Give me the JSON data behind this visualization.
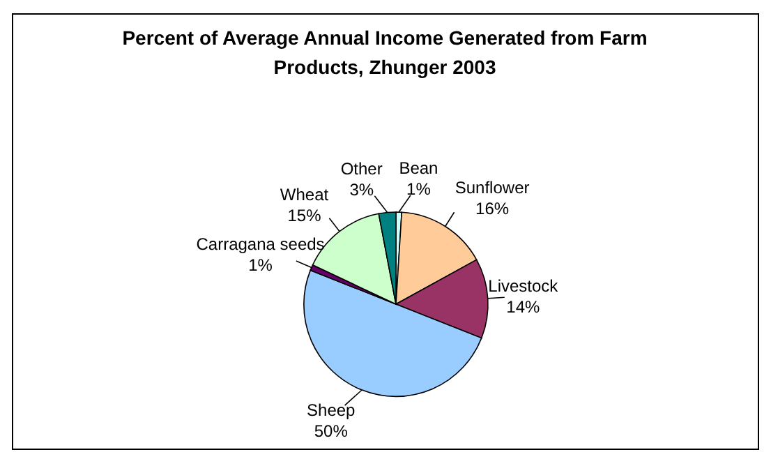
{
  "chart_data": {
    "type": "pie",
    "title": "Percent of Average Annual Income Generated from Farm Products, Zhunger 2003",
    "categories": [
      "Bean",
      "Sunflower",
      "Livestock",
      "Sheep",
      "Carragana seeds",
      "Wheat",
      "Other"
    ],
    "values": [
      1,
      16,
      14,
      50,
      1,
      15,
      3
    ],
    "value_labels": [
      "1%",
      "16%",
      "14%",
      "50%",
      "1%",
      "15%",
      "3%"
    ],
    "colors": [
      "#ccffff",
      "#ffcc99",
      "#993366",
      "#99ccff",
      "#660066",
      "#ccffcc",
      "#008080"
    ]
  }
}
